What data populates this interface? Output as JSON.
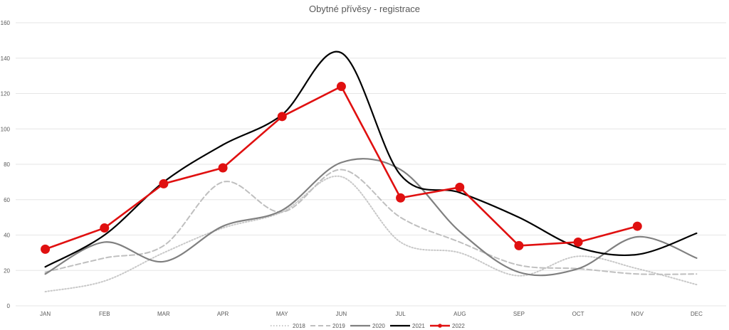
{
  "chart_data": {
    "type": "line",
    "title": "Obytné přívěsy - registrace",
    "xlabel": "",
    "ylabel": "",
    "categories": [
      "JAN",
      "FEB",
      "MAR",
      "APR",
      "MAY",
      "JUN",
      "JUL",
      "AUG",
      "SEP",
      "OCT",
      "NOV",
      "DEC"
    ],
    "ylim": [
      0,
      160
    ],
    "yticks": [
      0,
      20,
      40,
      60,
      80,
      100,
      120,
      140,
      160
    ],
    "grid": true,
    "legend": "bottom",
    "series": [
      {
        "name": "2018",
        "color": "#c8c8c8",
        "style": "dotted",
        "smooth": true,
        "markers": false,
        "values": [
          8,
          14,
          30,
          44,
          53,
          73,
          36,
          30,
          17,
          28,
          21,
          12
        ]
      },
      {
        "name": "2019",
        "color": "#bfbfbf",
        "style": "dashed",
        "smooth": true,
        "markers": false,
        "values": [
          19,
          27,
          34,
          70,
          53,
          77,
          50,
          36,
          23,
          21,
          18,
          18
        ]
      },
      {
        "name": "2020",
        "color": "#808080",
        "style": "solid",
        "smooth": true,
        "markers": false,
        "values": [
          18,
          36,
          25,
          45,
          54,
          81,
          77,
          42,
          19,
          21,
          39,
          27
        ]
      },
      {
        "name": "2021",
        "color": "#000000",
        "style": "solid",
        "smooth": true,
        "markers": false,
        "values": [
          22,
          40,
          70,
          91,
          108,
          143,
          74,
          64,
          50,
          33,
          29,
          41
        ]
      },
      {
        "name": "2022",
        "color": "#e01010",
        "style": "solid",
        "smooth": false,
        "markers": true,
        "values": [
          32,
          44,
          69,
          78,
          107,
          124,
          61,
          67,
          34,
          36,
          45,
          null
        ]
      }
    ]
  }
}
